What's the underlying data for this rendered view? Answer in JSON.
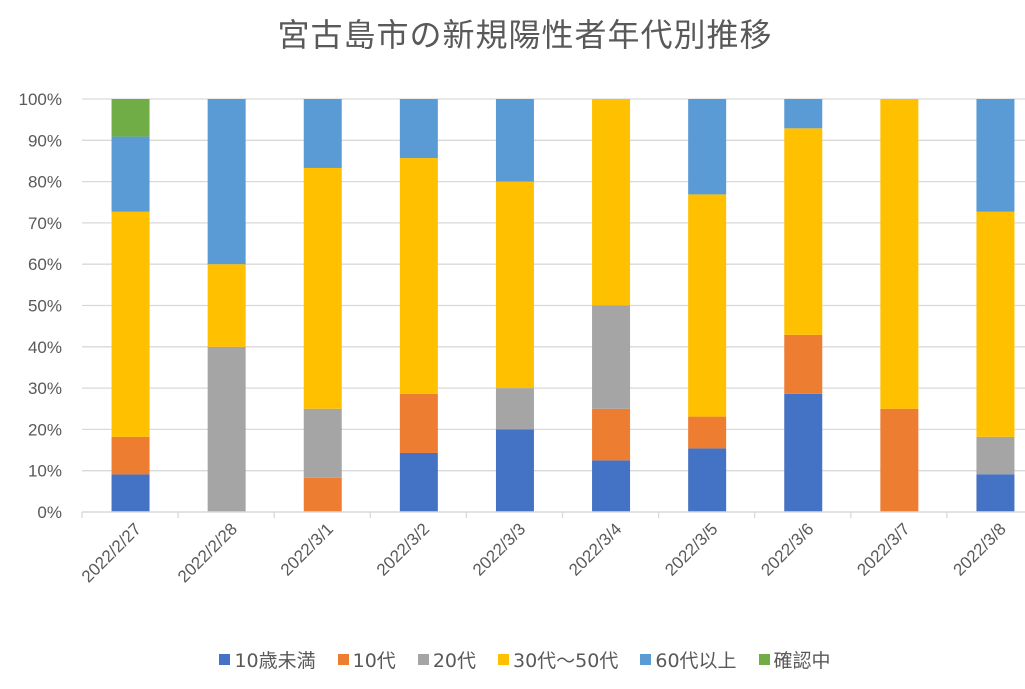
{
  "chart_data": {
    "type": "bar",
    "stacked": true,
    "percent_stacked": true,
    "title": "宮古島市の新規陽性者年代別推移",
    "xlabel": "",
    "ylabel": "",
    "ylim": [
      0,
      100
    ],
    "yticks": [
      "0%",
      "10%",
      "20%",
      "30%",
      "40%",
      "50%",
      "60%",
      "70%",
      "80%",
      "90%",
      "100%"
    ],
    "grid": true,
    "legend_position": "bottom",
    "categories": [
      "2022/2/27",
      "2022/2/28",
      "2022/3/1",
      "2022/3/2",
      "2022/3/3",
      "2022/3/4",
      "2022/3/5",
      "2022/3/6",
      "2022/3/7",
      "2022/3/8"
    ],
    "series": [
      {
        "name": "10歳未満",
        "color": "#4472C4",
        "values": [
          9.1,
          0,
          0,
          14.3,
          20,
          12.5,
          15.4,
          28.6,
          0,
          9.1
        ]
      },
      {
        "name": "10代",
        "color": "#ED7D31",
        "values": [
          9.1,
          0,
          8.3,
          14.3,
          0,
          12.5,
          7.7,
          14.3,
          25,
          0
        ]
      },
      {
        "name": "20代",
        "color": "#A5A5A5",
        "values": [
          0,
          40,
          16.7,
          0,
          10,
          25,
          0,
          0,
          0,
          9.1
        ]
      },
      {
        "name": "30代～50代",
        "color": "#FFC000",
        "values": [
          54.5,
          20,
          58.3,
          57.1,
          50,
          50,
          53.8,
          50,
          75,
          54.5
        ]
      },
      {
        "name": "60代以上",
        "color": "#5B9BD5",
        "values": [
          18.2,
          40,
          16.7,
          14.3,
          20,
          0,
          23.1,
          7.1,
          0,
          27.3
        ]
      },
      {
        "name": "確認中",
        "color": "#70AD47",
        "values": [
          9.1,
          0,
          0,
          0,
          0,
          0,
          0,
          0,
          0,
          0
        ]
      }
    ]
  },
  "cropped_axis_label": "4"
}
